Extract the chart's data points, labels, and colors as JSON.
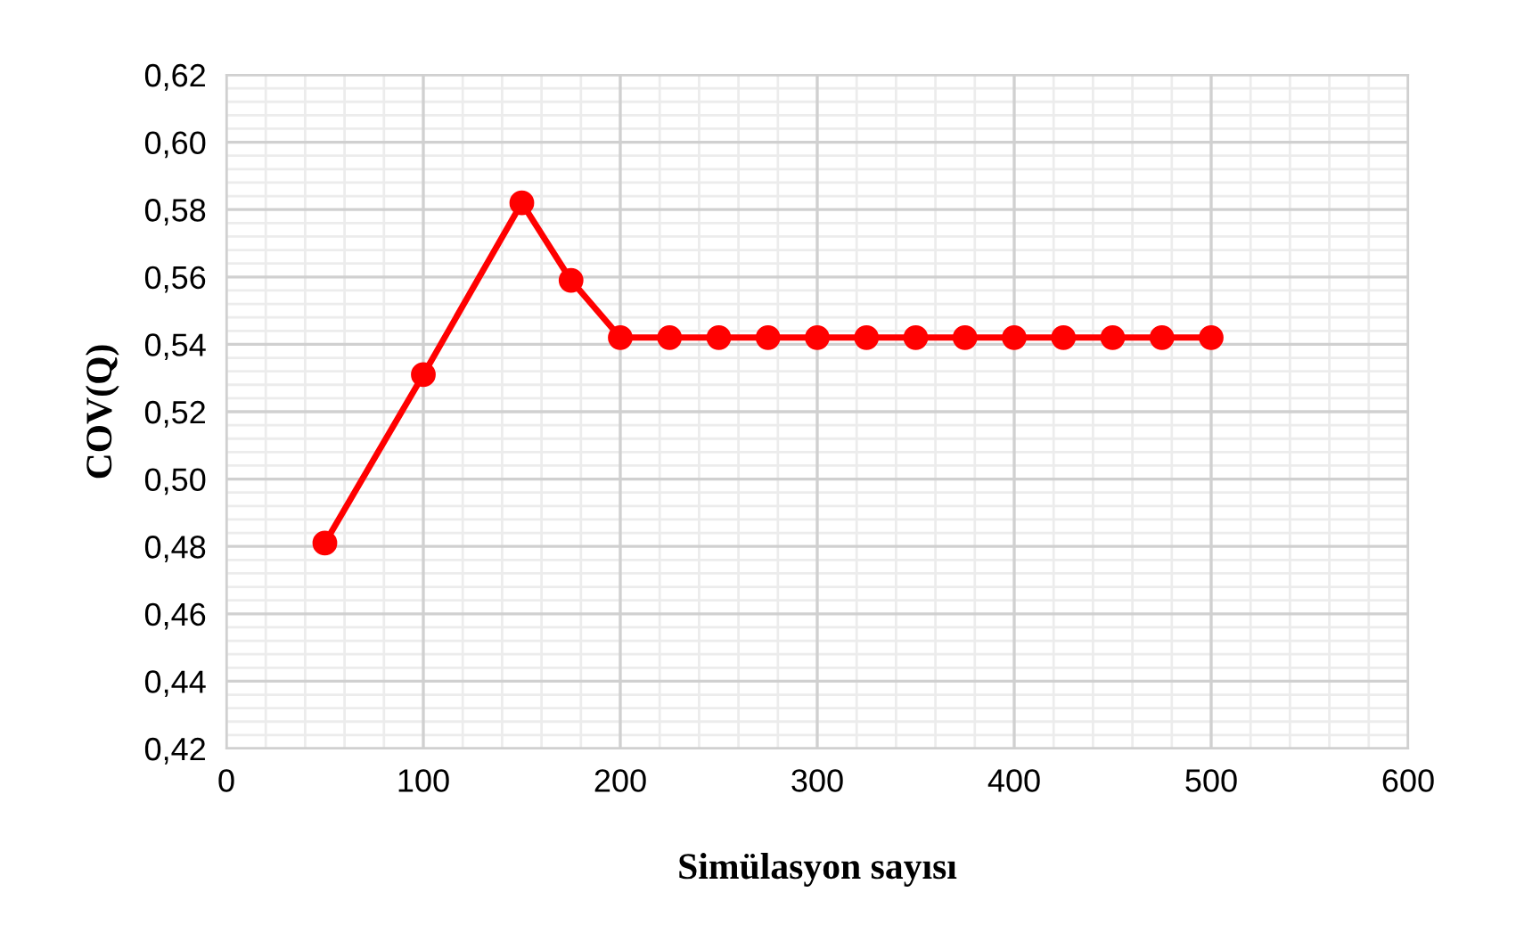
{
  "chart_data": {
    "type": "line",
    "xlabel": "Simülasyon sayısı",
    "ylabel": "COV(Q)",
    "x": [
      50,
      100,
      150,
      175,
      200,
      225,
      250,
      275,
      300,
      325,
      350,
      375,
      400,
      425,
      450,
      475,
      500
    ],
    "series": [
      {
        "color": "#ff0000",
        "values": [
          0.481,
          0.531,
          0.582,
          0.559,
          0.542,
          0.542,
          0.542,
          0.542,
          0.542,
          0.542,
          0.542,
          0.542,
          0.542,
          0.542,
          0.542,
          0.542,
          0.542
        ]
      }
    ],
    "xlim": [
      0,
      600
    ],
    "xticks": [
      0,
      100,
      200,
      300,
      400,
      500,
      600
    ],
    "ylim": [
      0.42,
      0.62
    ],
    "yticks": [
      {
        "value": 0.42,
        "label": "0,42"
      },
      {
        "value": 0.44,
        "label": "0,44"
      },
      {
        "value": 0.46,
        "label": "0,46"
      },
      {
        "value": 0.48,
        "label": "0,48"
      },
      {
        "value": 0.5,
        "label": "0,50"
      },
      {
        "value": 0.52,
        "label": "0,52"
      },
      {
        "value": 0.54,
        "label": "0,54"
      },
      {
        "value": 0.56,
        "label": "0,56"
      },
      {
        "value": 0.58,
        "label": "0,58"
      },
      {
        "value": 0.6,
        "label": "0,60"
      },
      {
        "value": 0.62,
        "label": "0,62"
      }
    ],
    "grid": true,
    "marker": "circle",
    "line_style": "solid",
    "legend": false
  }
}
